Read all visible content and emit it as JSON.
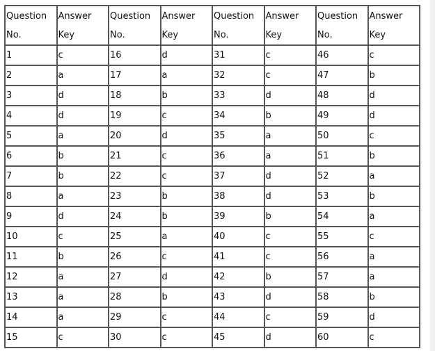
{
  "headers": [
    "Question\nNo.",
    "Answer\nKey",
    "Question\nNo.",
    "Answer\nKey",
    "Question\nNo.",
    "Answer\nKey",
    "Question\nNo.",
    "Answer\nKey"
  ],
  "header_lines": [
    [
      "Question",
      "No."
    ],
    [
      "Answer",
      "Key"
    ],
    [
      "Question",
      "No."
    ],
    [
      "Answer",
      "Key"
    ],
    [
      "Question",
      "No."
    ],
    [
      "Answer",
      "Key"
    ],
    [
      "Question",
      "No."
    ],
    [
      "Answer",
      "Key"
    ]
  ],
  "rows": [
    [
      "1",
      "c",
      "16",
      "d",
      "31",
      "c",
      "46",
      "c"
    ],
    [
      "2",
      "a",
      "17",
      "a",
      "32",
      "c",
      "47",
      "b"
    ],
    [
      "3",
      "d",
      "18",
      "b",
      "33",
      "d",
      "48",
      "d"
    ],
    [
      "4",
      "d",
      "19",
      "c",
      "34",
      "b",
      "49",
      "d"
    ],
    [
      "5",
      "a",
      "20",
      "d",
      "35",
      "a",
      "50",
      "c"
    ],
    [
      "6",
      "b",
      "21",
      "c",
      "36",
      "a",
      "51",
      "b"
    ],
    [
      "7",
      "b",
      "22",
      "c",
      "37",
      "d",
      "52",
      "a"
    ],
    [
      "8",
      "a",
      "23",
      "b",
      "38",
      "d",
      "53",
      "b"
    ],
    [
      "9",
      "d",
      "24",
      "b",
      "39",
      "b",
      "54",
      "a"
    ],
    [
      "10",
      "c",
      "25",
      "a",
      "40",
      "c",
      "55",
      "c"
    ],
    [
      "11",
      "b",
      "26",
      "c",
      "41",
      "c",
      "56",
      "a"
    ],
    [
      "12",
      "a",
      "27",
      "d",
      "42",
      "b",
      "57",
      "a"
    ],
    [
      "13",
      "a",
      "28",
      "b",
      "43",
      "d",
      "58",
      "b"
    ],
    [
      "14",
      "a",
      "29",
      "c",
      "44",
      "c",
      "59",
      "d"
    ],
    [
      "15",
      "c",
      "30",
      "c",
      "45",
      "d",
      "60",
      "c"
    ]
  ]
}
